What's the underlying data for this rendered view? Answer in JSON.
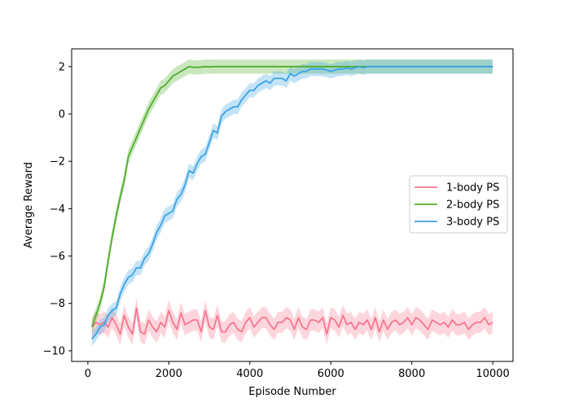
{
  "chart_data": {
    "type": "line",
    "title": "",
    "xlabel": "Episode Number",
    "ylabel": "Average Reward",
    "xlim": [
      -400,
      10500
    ],
    "ylim": [
      -10.45,
      2.75
    ],
    "xticks": [
      0,
      2000,
      4000,
      6000,
      8000,
      10000
    ],
    "yticks": [
      -10,
      -8,
      -6,
      -4,
      -2,
      0,
      2
    ],
    "xtick_labels": [
      "0",
      "2000",
      "4000",
      "6000",
      "8000",
      "10000"
    ],
    "ytick_labels": [
      "−10",
      "−8",
      "−6",
      "−4",
      "−2",
      "0",
      "2"
    ],
    "grid": false,
    "legend_position": "center-right",
    "series": [
      {
        "name": "1-body PS",
        "color": "#f7768e",
        "band_halfwidth": 0.45,
        "x": [
          100,
          200,
          300,
          400,
          500,
          600,
          700,
          800,
          900,
          1000,
          1100,
          1200,
          1300,
          1400,
          1500,
          1600,
          1700,
          1800,
          1900,
          2000,
          2100,
          2200,
          2300,
          2400,
          2500,
          2600,
          2700,
          2800,
          2900,
          3000,
          3100,
          3200,
          3300,
          3400,
          3500,
          3600,
          3700,
          3800,
          3900,
          4000,
          4100,
          4200,
          4300,
          4400,
          4500,
          4600,
          4700,
          4800,
          4900,
          5000,
          5100,
          5200,
          5300,
          5400,
          5500,
          5600,
          5700,
          5800,
          5900,
          6000,
          6100,
          6200,
          6300,
          6400,
          6500,
          6600,
          6700,
          6800,
          6900,
          7000,
          7100,
          7200,
          7300,
          7400,
          7500,
          7600,
          7700,
          7800,
          7900,
          8000,
          8100,
          8200,
          8300,
          8400,
          8500,
          8600,
          8700,
          8800,
          8900,
          9000,
          9100,
          9200,
          9300,
          9400,
          9500,
          9600,
          9700,
          9800,
          9900,
          10000
        ],
        "y": [
          -9.0,
          -8.8,
          -8.9,
          -8.8,
          -9.0,
          -8.6,
          -8.9,
          -9.3,
          -8.5,
          -9.0,
          -9.3,
          -8.2,
          -9.2,
          -9.3,
          -8.7,
          -9.0,
          -9.2,
          -8.8,
          -9.0,
          -8.3,
          -8.8,
          -9.1,
          -8.4,
          -8.9,
          -8.8,
          -8.7,
          -8.7,
          -9.2,
          -8.3,
          -9.0,
          -9.1,
          -8.5,
          -9.2,
          -9.2,
          -8.9,
          -8.8,
          -9.1,
          -9.2,
          -8.8,
          -8.6,
          -9.0,
          -8.8,
          -8.6,
          -8.6,
          -8.9,
          -9.1,
          -8.8,
          -8.8,
          -8.6,
          -8.7,
          -9.1,
          -8.6,
          -9.0,
          -9.1,
          -8.7,
          -8.7,
          -8.8,
          -8.6,
          -9.3,
          -8.6,
          -8.7,
          -9.0,
          -8.5,
          -8.9,
          -8.8,
          -9.1,
          -8.8,
          -8.9,
          -8.7,
          -9.1,
          -8.6,
          -9.2,
          -8.7,
          -9.1,
          -8.8,
          -8.7,
          -8.9,
          -8.8,
          -8.6,
          -8.9,
          -8.6,
          -8.7,
          -8.9,
          -9.1,
          -8.7,
          -8.8,
          -8.9,
          -8.8,
          -9.0,
          -8.7,
          -8.9,
          -8.9,
          -8.8,
          -9.1,
          -8.9,
          -8.8,
          -8.8,
          -8.6,
          -8.9,
          -8.8
        ]
      },
      {
        "name": "2-body PS",
        "color": "#4fae2c",
        "band_halfwidth": 0.3,
        "x": [
          100,
          200,
          300,
          400,
          500,
          600,
          700,
          800,
          900,
          1000,
          1100,
          1200,
          1300,
          1400,
          1500,
          1600,
          1700,
          1800,
          1900,
          2000,
          2100,
          2200,
          2300,
          2400,
          2500,
          2600,
          2700,
          2800,
          2900,
          3000,
          3100,
          3200,
          3300,
          3400,
          3500,
          3600,
          3700,
          3800,
          3900,
          4000,
          4200,
          4400,
          4600,
          4800,
          5000,
          5200,
          5400,
          5600,
          5800,
          6000,
          6200,
          6400,
          6600,
          6800,
          7000,
          7200,
          7400,
          7600,
          7800,
          8000,
          8200,
          8400,
          8600,
          8800,
          9000,
          9200,
          9400,
          9600,
          9800,
          10000
        ],
        "y": [
          -9.0,
          -8.5,
          -8.0,
          -7.3,
          -6.2,
          -5.2,
          -4.3,
          -3.5,
          -2.8,
          -1.8,
          -1.4,
          -1.0,
          -0.6,
          -0.2,
          0.2,
          0.5,
          0.8,
          1.1,
          1.2,
          1.4,
          1.6,
          1.7,
          1.8,
          1.9,
          2.0,
          1.97,
          1.97,
          1.98,
          2.0,
          1.99,
          2.0,
          2.0,
          2.0,
          2.0,
          2.0,
          2.0,
          2.0,
          2.0,
          2.0,
          2.0,
          2.0,
          2.0,
          2.0,
          2.0,
          2.0,
          2.0,
          2.0,
          2.0,
          2.0,
          2.0,
          2.0,
          2.0,
          2.0,
          2.0,
          2.0,
          2.0,
          2.0,
          2.0,
          2.0,
          2.0,
          2.0,
          2.0,
          2.0,
          2.0,
          2.0,
          2.0,
          2.0,
          2.0,
          2.0,
          2.0
        ]
      },
      {
        "name": "3-body PS",
        "color": "#3ba3e6",
        "band_halfwidth": 0.3,
        "x": [
          100,
          200,
          300,
          400,
          500,
          600,
          700,
          800,
          900,
          1000,
          1100,
          1200,
          1300,
          1400,
          1500,
          1600,
          1700,
          1800,
          1900,
          2000,
          2100,
          2200,
          2300,
          2400,
          2500,
          2600,
          2700,
          2800,
          2900,
          3000,
          3100,
          3200,
          3300,
          3400,
          3500,
          3600,
          3700,
          3800,
          3900,
          4000,
          4100,
          4200,
          4300,
          4400,
          4500,
          4600,
          4700,
          4800,
          4900,
          5000,
          5100,
          5200,
          5300,
          5400,
          5500,
          5600,
          5700,
          5800,
          5900,
          6000,
          6100,
          6200,
          6300,
          6400,
          6500,
          6600,
          6700,
          6800,
          6900,
          7000,
          7200,
          7400,
          7600,
          7800,
          8000,
          8200,
          8400,
          8600,
          8800,
          9000,
          9200,
          9400,
          9600,
          9800,
          10000
        ],
        "y": [
          -9.5,
          -9.3,
          -9.0,
          -8.9,
          -8.5,
          -8.3,
          -8.2,
          -7.6,
          -7.2,
          -6.9,
          -6.8,
          -6.5,
          -6.5,
          -6.1,
          -5.9,
          -5.5,
          -5.0,
          -4.7,
          -4.3,
          -4.2,
          -4.1,
          -3.6,
          -3.4,
          -3.0,
          -2.4,
          -2.5,
          -2.1,
          -1.8,
          -1.7,
          -1.2,
          -0.7,
          -0.8,
          -0.1,
          0.1,
          0.2,
          0.3,
          0.3,
          0.6,
          0.8,
          1.0,
          1.0,
          1.2,
          1.3,
          1.4,
          1.3,
          1.5,
          1.5,
          1.5,
          1.4,
          1.7,
          1.6,
          1.7,
          1.8,
          1.8,
          1.9,
          1.9,
          1.9,
          1.9,
          1.85,
          1.8,
          1.85,
          1.9,
          1.9,
          1.95,
          1.9,
          1.95,
          2.0,
          1.95,
          2.0,
          2.0,
          2.0,
          2.0,
          2.0,
          2.0,
          2.0,
          2.0,
          2.0,
          2.0,
          2.0,
          2.0,
          2.0,
          2.0,
          2.0,
          2.0,
          2.0
        ]
      }
    ]
  }
}
